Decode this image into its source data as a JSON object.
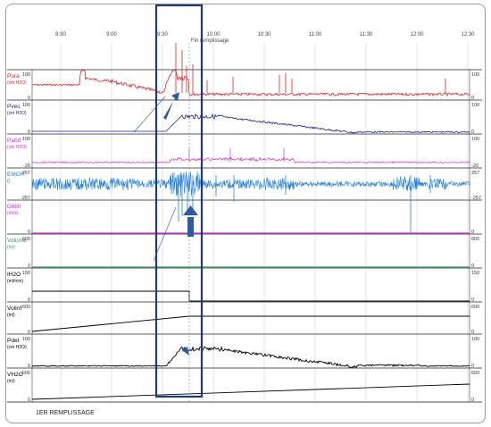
{
  "chart_data": {
    "type": "line",
    "title": "",
    "time_ticks": [
      "8:30",
      "9:00",
      "9:30",
      "10:00",
      "10:30",
      "11:00",
      "11:30",
      "12:00",
      "12:30"
    ],
    "event_label": "Fin remplissage",
    "footer": "1ER REMPLISSAGE",
    "channels": [
      {
        "name": "Pura",
        "unit": "(cm H2O)",
        "color": "#e02020",
        "ymin": 0,
        "ymax": 100,
        "top_tick": "100",
        "bottom_tick": "0"
      },
      {
        "name": "Pves",
        "unit": "(cm H2O)",
        "color": "#1a1aa0",
        "ymin": 0,
        "ymax": 100,
        "top_tick": "100",
        "bottom_tick": "0"
      },
      {
        "name": "Pabd",
        "unit": "(cm H2O)",
        "color": "#e020e0",
        "ymin": -20,
        "ymax": 100,
        "top_tick": "100",
        "bottom_tick": "-20"
      },
      {
        "name": "EMGR",
        "unit": "()",
        "color": "#2080e0",
        "ymin": -257,
        "ymax": 257,
        "top_tick": "257",
        "bottom_tick": "-257"
      },
      {
        "name": "Débit",
        "unit": "(ml/s)",
        "color": "#e020e0",
        "ymin": 0,
        "ymax": 50,
        "top_tick": "",
        "bottom_tick": "0"
      },
      {
        "name": "Volume",
        "unit": "(ml)",
        "color": "#30a060",
        "ymin": 0,
        "ymax": 600,
        "top_tick": "600",
        "bottom_tick": "0"
      },
      {
        "name": "IH2O",
        "unit": "(ml/min)",
        "color": "#000000",
        "ymin": 0,
        "ymax": 150,
        "top_tick": "150",
        "bottom_tick": "0"
      },
      {
        "name": "VolInf",
        "unit": "(ml)",
        "color": "#000000",
        "ymin": 0,
        "ymax": 600,
        "top_tick": "600",
        "bottom_tick": "0"
      },
      {
        "name": "Pdet",
        "unit": "(cm H2O)",
        "color": "#000000",
        "ymin": 0,
        "ymax": 100,
        "top_tick": "100",
        "bottom_tick": "0"
      },
      {
        "name": "VH2O",
        "unit": "(ml)",
        "color": "#000000",
        "ymin": 0,
        "ymax": 600,
        "top_tick": "600",
        "bottom_tick": "0"
      }
    ],
    "colors": {
      "highlight_box": "#1f3a7a",
      "arrow": "#2a5aa8",
      "grid": "#d0d0d0"
    }
  }
}
